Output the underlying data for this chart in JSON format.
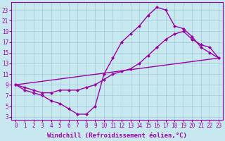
{
  "background_color": "#c8e8f0",
  "grid_color": "#a0c8d8",
  "line_color": "#9900aa",
  "markersize": 2.5,
  "linewidth": 1.0,
  "xlabel": "Windchill (Refroidissement éolien,°C)",
  "xlabel_fontsize": 6.5,
  "tick_fontsize": 5.5,
  "xlim": [
    -0.5,
    23.5
  ],
  "ylim": [
    2.5,
    24.5
  ],
  "xticks": [
    0,
    1,
    2,
    3,
    4,
    5,
    6,
    7,
    8,
    9,
    10,
    11,
    12,
    13,
    14,
    15,
    16,
    17,
    18,
    19,
    20,
    21,
    22,
    23
  ],
  "yticks": [
    3,
    5,
    7,
    9,
    11,
    13,
    15,
    17,
    19,
    21,
    23
  ],
  "line1_x": [
    0,
    1,
    2,
    3,
    4,
    5,
    6,
    7,
    8,
    9,
    10,
    11,
    12,
    13,
    14,
    15,
    16,
    17,
    18,
    19,
    20,
    21,
    22,
    23
  ],
  "line1_y": [
    9.0,
    8.0,
    7.5,
    7.0,
    6.0,
    5.5,
    4.5,
    3.5,
    3.5,
    5.0,
    11.0,
    14.0,
    17.0,
    18.5,
    20.0,
    22.0,
    23.5,
    23.0,
    20.0,
    19.5,
    18.0,
    16.0,
    15.0,
    14.0
  ],
  "line2_x": [
    0,
    23
  ],
  "line2_y": [
    9.0,
    14.0
  ],
  "line3_x": [
    0,
    1,
    2,
    3,
    4,
    5,
    6,
    7,
    8,
    9,
    10,
    11,
    12,
    13,
    14,
    15,
    16,
    17,
    18,
    19,
    20,
    21,
    22,
    23
  ],
  "line3_y": [
    9.0,
    8.5,
    8.0,
    7.5,
    7.5,
    8.0,
    8.0,
    8.0,
    8.5,
    9.0,
    10.0,
    11.0,
    11.5,
    12.0,
    13.0,
    14.5,
    16.0,
    17.5,
    18.5,
    19.0,
    17.5,
    16.5,
    16.0,
    14.0
  ]
}
